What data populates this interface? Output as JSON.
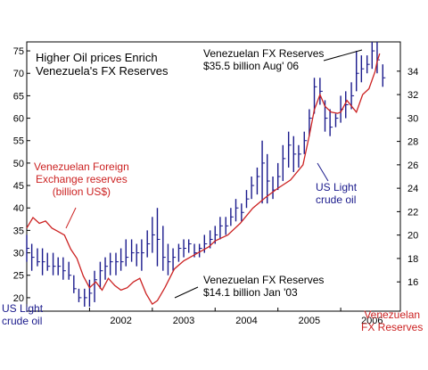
{
  "chart_data": {
    "type": "line",
    "title": "Higher Oil prices Enrich\nVenezuela's FX Reserves",
    "x_ticks": [
      "2002",
      "2003",
      "2004",
      "2005",
      "2006"
    ],
    "left_axis": {
      "label": "US Light\ncrude oil",
      "ticks": [
        "75",
        "70",
        "65",
        "60",
        "55",
        "50",
        "45",
        "40",
        "35",
        "30",
        "25",
        "20"
      ],
      "ylim": [
        17,
        77
      ]
    },
    "right_axis": {
      "label": "Venezuelan\nFX Reserves",
      "ticks": [
        "34",
        "32",
        "30",
        "28",
        "26",
        "24",
        "22",
        "20",
        "18",
        "16"
      ],
      "ylim": [
        13.5,
        36.5
      ]
    },
    "annotations": {
      "fx_high": "Venezuelan FX Reserves\n$35.5 billion  Aug' 06",
      "fx_low": "Venezuelan FX Reserves\n$14.1 billion Jan '03"
    },
    "legend": {
      "fx": "Venezuelan Foreign\nExchange reserves\n(billion US$)",
      "oil": "US Light\ncrude oil"
    },
    "colors": {
      "fx": "#cc2222",
      "oil": "#1a1a8c",
      "axis": "#000000"
    },
    "series": [
      {
        "axis": "right",
        "color": "#cc2222",
        "x": [
          2001.0,
          2001.1,
          2001.2,
          2001.3,
          2001.4,
          2001.5,
          2001.6,
          2001.7,
          2001.8,
          2001.9,
          2002.0,
          2002.1,
          2002.2,
          2002.3,
          2002.4,
          2002.5,
          2002.6,
          2002.7,
          2002.8,
          2002.9,
          2003.0,
          2003.08,
          2003.2,
          2003.35,
          2003.5,
          2003.7,
          2003.9,
          2004.0,
          2004.2,
          2004.4,
          2004.6,
          2004.8,
          2005.0,
          2005.2,
          2005.4,
          2005.5,
          2005.58,
          2005.67,
          2005.75,
          2005.85,
          2005.95,
          2006.0,
          2006.1,
          2006.25,
          2006.35,
          2006.45,
          2006.55,
          2006.58,
          2006.62
        ],
        "values": [
          20.6,
          21.5,
          21.0,
          21.2,
          20.6,
          20.3,
          20.0,
          18.8,
          18.0,
          16.5,
          15.5,
          16.0,
          15.3,
          16.3,
          15.7,
          15.3,
          15.5,
          16.0,
          16.3,
          15.0,
          14.1,
          14.4,
          15.5,
          17.1,
          17.8,
          18.4,
          19.0,
          19.5,
          20.0,
          21.0,
          22.3,
          23.2,
          24.0,
          24.7,
          26.0,
          28.5,
          30.7,
          32.0,
          31.0,
          30.5,
          30.4,
          30.5,
          31.5,
          30.5,
          32.0,
          32.5,
          34.0,
          34.8,
          35.5
        ]
      },
      {
        "axis": "left",
        "color": "#1a1a8c",
        "type": "ohlc",
        "x": [
          2001.0,
          2001.08,
          2001.17,
          2001.25,
          2001.33,
          2001.42,
          2001.5,
          2001.58,
          2001.67,
          2001.75,
          2001.83,
          2001.92,
          2002.0,
          2002.08,
          2002.17,
          2002.25,
          2002.33,
          2002.42,
          2002.5,
          2002.58,
          2002.67,
          2002.75,
          2002.83,
          2002.92,
          2003.0,
          2003.08,
          2003.17,
          2003.25,
          2003.33,
          2003.42,
          2003.5,
          2003.58,
          2003.67,
          2003.75,
          2003.83,
          2003.92,
          2004.0,
          2004.08,
          2004.17,
          2004.25,
          2004.33,
          2004.42,
          2004.5,
          2004.58,
          2004.67,
          2004.75,
          2004.83,
          2004.92,
          2005.0,
          2005.08,
          2005.17,
          2005.25,
          2005.33,
          2005.42,
          2005.5,
          2005.58,
          2005.67,
          2005.75,
          2005.83,
          2005.92,
          2006.0,
          2006.08,
          2006.17,
          2006.25,
          2006.33,
          2006.42,
          2006.5,
          2006.58,
          2006.67
        ],
        "low": [
          28,
          26,
          27,
          25,
          26,
          25,
          25,
          24,
          24,
          21,
          19,
          18,
          18,
          19,
          22,
          24,
          25,
          25,
          26,
          27,
          28,
          27,
          26,
          29,
          30,
          27,
          26,
          25,
          26,
          28,
          29,
          30,
          29,
          29,
          30,
          31,
          32,
          33,
          34,
          36,
          37,
          37,
          40,
          42,
          43,
          41,
          41,
          42,
          44,
          46,
          49,
          48,
          49,
          52,
          56,
          61,
          63,
          57,
          56,
          58,
          59,
          60,
          62,
          66,
          68,
          70,
          71,
          70,
          67
        ],
        "high": [
          34,
          32,
          31,
          31,
          30,
          30,
          29,
          29,
          28,
          25,
          22,
          22,
          24,
          26,
          28,
          29,
          30,
          30,
          31,
          33,
          33,
          32,
          33,
          35,
          38,
          40,
          36,
          32,
          31,
          32,
          33,
          33,
          32,
          32,
          34,
          35,
          36,
          38,
          38,
          40,
          42,
          41,
          44,
          47,
          49,
          55,
          52,
          47,
          50,
          54,
          57,
          56,
          54,
          57,
          62,
          69,
          69,
          64,
          62,
          61,
          65,
          66,
          68,
          75,
          74,
          74,
          77,
          77,
          72
        ],
        "close": [
          31,
          29,
          28,
          28,
          27,
          27,
          27,
          26,
          25,
          22,
          20,
          20,
          21,
          24,
          26,
          27,
          28,
          28,
          28,
          29,
          30,
          30,
          30,
          32,
          34,
          33,
          29,
          28,
          29,
          31,
          31,
          32,
          30,
          31,
          32,
          33,
          34,
          36,
          36,
          38,
          40,
          39,
          42,
          45,
          47,
          50,
          46,
          44,
          47,
          51,
          54,
          52,
          52,
          55,
          60,
          67,
          66,
          60,
          58,
          60,
          62,
          63,
          65,
          70,
          71,
          72,
          75,
          73,
          69
        ]
      }
    ]
  }
}
